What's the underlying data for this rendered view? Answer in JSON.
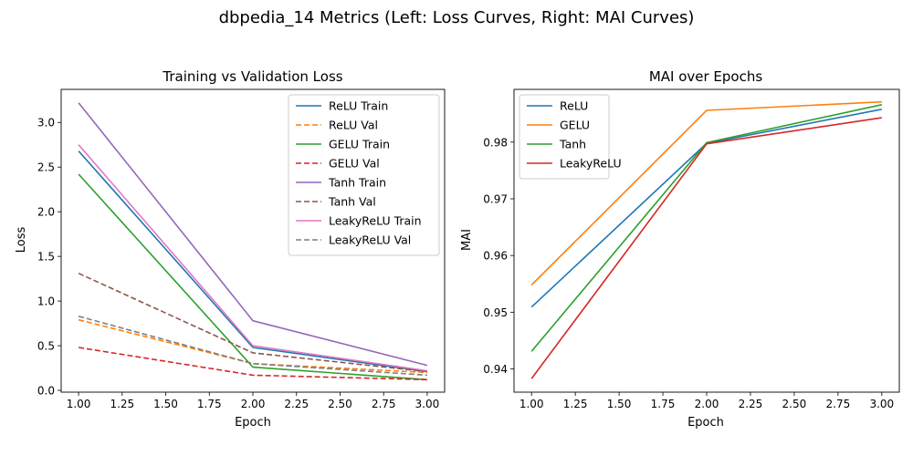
{
  "figure_title": "dbpedia_14 Metrics (Left: Loss Curves, Right: MAI Curves)",
  "chart_data": [
    {
      "type": "line",
      "title": "Training vs Validation Loss",
      "xlabel": "Epoch",
      "ylabel": "Loss",
      "x": [
        1,
        2,
        3
      ],
      "xlim": [
        0.9,
        3.1
      ],
      "ylim": [
        -0.02,
        3.37
      ],
      "xticks": [
        "1.00",
        "1.25",
        "1.50",
        "1.75",
        "2.00",
        "2.25",
        "2.50",
        "2.75",
        "3.00"
      ],
      "xtick_values": [
        1,
        1.25,
        1.5,
        1.75,
        2,
        2.25,
        2.5,
        2.75,
        3
      ],
      "yticks": [
        "0.0",
        "0.5",
        "1.0",
        "1.5",
        "2.0",
        "2.5",
        "3.0"
      ],
      "ytick_values": [
        0,
        0.5,
        1,
        1.5,
        2,
        2.5,
        3
      ],
      "grid": false,
      "legend": "top-right",
      "series": [
        {
          "name": "ReLU Train",
          "values": [
            2.68,
            0.48,
            0.21
          ],
          "color": "#1f77b4",
          "dash": "solid"
        },
        {
          "name": "ReLU Val",
          "values": [
            0.79,
            0.3,
            0.2
          ],
          "color": "#ff7f0e",
          "dash": "dashed"
        },
        {
          "name": "GELU Train",
          "values": [
            2.42,
            0.26,
            0.12
          ],
          "color": "#2ca02c",
          "dash": "solid"
        },
        {
          "name": "GELU Val",
          "values": [
            0.48,
            0.17,
            0.12
          ],
          "color": "#d62728",
          "dash": "dashed"
        },
        {
          "name": "Tanh Train",
          "values": [
            3.22,
            0.78,
            0.28
          ],
          "color": "#9467bd",
          "dash": "solid"
        },
        {
          "name": "Tanh Val",
          "values": [
            1.31,
            0.42,
            0.21
          ],
          "color": "#8c564b",
          "dash": "dashed"
        },
        {
          "name": "LeakyReLU Train",
          "values": [
            2.75,
            0.5,
            0.22
          ],
          "color": "#e377c2",
          "dash": "solid"
        },
        {
          "name": "LeakyReLU Val",
          "values": [
            0.83,
            0.3,
            0.17
          ],
          "color": "#7f7f7f",
          "dash": "dashed"
        }
      ]
    },
    {
      "type": "line",
      "title": "MAI over Epochs",
      "xlabel": "Epoch",
      "ylabel": "MAI",
      "x": [
        1,
        2,
        3
      ],
      "xlim": [
        0.9,
        3.1
      ],
      "ylim": [
        0.9359,
        0.9893
      ],
      "xticks": [
        "1.00",
        "1.25",
        "1.50",
        "1.75",
        "2.00",
        "2.25",
        "2.50",
        "2.75",
        "3.00"
      ],
      "xtick_values": [
        1,
        1.25,
        1.5,
        1.75,
        2,
        2.25,
        2.5,
        2.75,
        3
      ],
      "yticks": [
        "0.94",
        "0.95",
        "0.96",
        "0.97",
        "0.98"
      ],
      "ytick_values": [
        0.94,
        0.95,
        0.96,
        0.97,
        0.98
      ],
      "grid": false,
      "legend": "top-left",
      "series": [
        {
          "name": "ReLU",
          "values": [
            0.9509,
            0.9798,
            0.9858
          ],
          "color": "#1f77b4",
          "dash": "solid"
        },
        {
          "name": "GELU",
          "values": [
            0.9548,
            0.9856,
            0.9871
          ],
          "color": "#ff7f0e",
          "dash": "solid"
        },
        {
          "name": "Tanh",
          "values": [
            0.9431,
            0.9799,
            0.9866
          ],
          "color": "#2ca02c",
          "dash": "solid"
        },
        {
          "name": "LeakyReLU",
          "values": [
            0.9383,
            0.9797,
            0.9843
          ],
          "color": "#d62728",
          "dash": "solid"
        }
      ]
    }
  ]
}
